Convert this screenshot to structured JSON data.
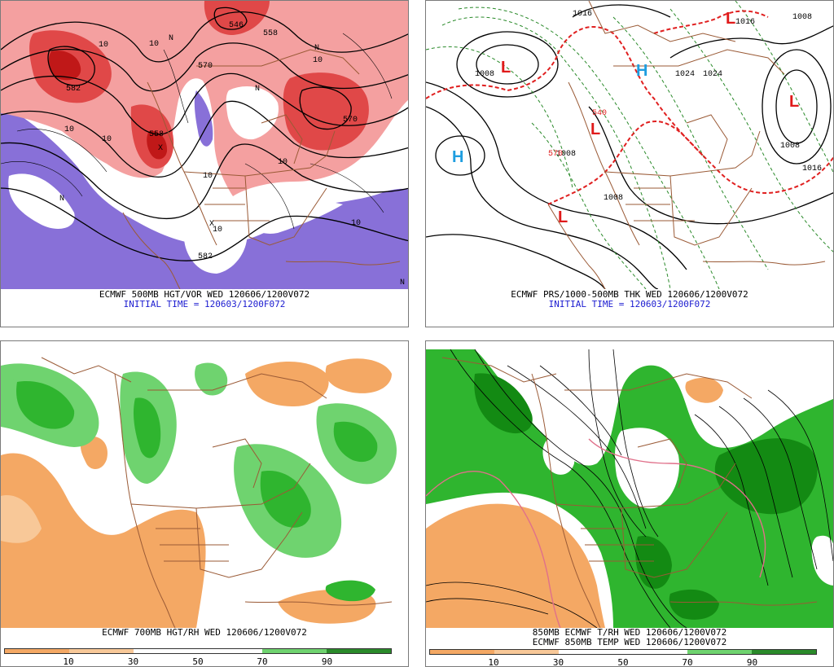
{
  "colors": {
    "vort_red": "#e04848",
    "vort_light": "#f4a0a0",
    "vort_purple": "#8870d8",
    "rh_green": "#2fb52f",
    "rh_dark": "#138a13",
    "rh_light": "#6fd36f",
    "dry_orange": "#f4a864",
    "dry_light": "#f8c898",
    "border_brown": "#9a5a36",
    "thickness_red": "#e02020",
    "thickness_green": "#2a8a2a",
    "high_blue": "#1f9ee0",
    "low_red": "#e01a1a"
  },
  "panels": [
    {
      "id": "p500",
      "caption1": "ECMWF 500MB HGT/VOR WED 120606/1200V072",
      "caption2": "INITIAL TIME = 120603/1200F072",
      "labels": [
        "10",
        "10",
        "10",
        "10",
        "10",
        "10",
        "10",
        "10",
        "10",
        "570",
        "570",
        "558",
        "546",
        "558",
        "582",
        "582",
        "N",
        "N",
        "N",
        "N",
        "N",
        "X",
        "X"
      ]
    },
    {
      "id": "pprs",
      "caption1": "ECMWF PRS/1000-500MB THK WED 120606/1200V072",
      "caption2": "INITIAL TIME = 120603/1200F072",
      "labels": [
        "1008",
        "1008",
        "1016",
        "1016",
        "1008",
        "1008",
        "1024",
        "1024",
        "1016",
        "1008",
        "540",
        "570"
      ],
      "symbols": [
        "L",
        "L",
        "L",
        "L",
        "L",
        "H",
        "H"
      ]
    },
    {
      "id": "p700",
      "caption1": "ECMWF 700MB HGT/RH WED 120606/1200V072",
      "colorbar": [
        "10",
        "30",
        "50",
        "70",
        "90"
      ]
    },
    {
      "id": "p850",
      "caption1": "850MB ECMWF T/RH WED 120606/1200V072",
      "caption2": "ECMWF 850MB TEMP WED 120606/1200V072",
      "colorbar": [
        "10",
        "30",
        "50",
        "70",
        "90"
      ]
    }
  ]
}
